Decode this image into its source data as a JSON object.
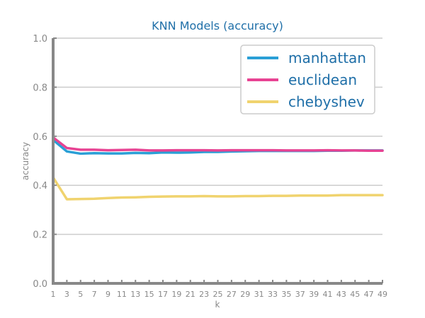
{
  "chart_data": {
    "type": "line",
    "title": "KNN Models (accuracy)",
    "xlabel": "k",
    "ylabel": "accuracy",
    "ylim": [
      0.0,
      1.0
    ],
    "xlim": [
      1,
      49
    ],
    "yticks": [
      "0.0",
      "0.2",
      "0.4",
      "0.6",
      "0.8",
      "1.0"
    ],
    "y_tick_values": [
      0.0,
      0.2,
      0.4,
      0.6,
      0.8,
      1.0
    ],
    "x": [
      1,
      3,
      5,
      7,
      9,
      11,
      13,
      15,
      17,
      19,
      21,
      23,
      25,
      27,
      29,
      31,
      33,
      35,
      37,
      39,
      41,
      43,
      45,
      47,
      49
    ],
    "xticks": [
      "1",
      "3",
      "5",
      "7",
      "9",
      "11",
      "13",
      "15",
      "17",
      "19",
      "21",
      "23",
      "25",
      "27",
      "29",
      "31",
      "33",
      "35",
      "37",
      "39",
      "41",
      "43",
      "45",
      "47",
      "49"
    ],
    "grid": "horizontal",
    "legend_position": "top-right",
    "series": [
      {
        "name": "manhattan",
        "color": "#2a9fd6",
        "values": [
          0.585,
          0.538,
          0.529,
          0.531,
          0.53,
          0.53,
          0.532,
          0.531,
          0.534,
          0.533,
          0.534,
          0.536,
          0.536,
          0.538,
          0.539,
          0.54,
          0.54,
          0.54,
          0.54,
          0.54,
          0.541,
          0.541,
          0.542,
          0.542,
          0.542
        ]
      },
      {
        "name": "euclidean",
        "color": "#e84393",
        "values": [
          0.595,
          0.552,
          0.545,
          0.545,
          0.543,
          0.544,
          0.545,
          0.542,
          0.542,
          0.543,
          0.543,
          0.543,
          0.542,
          0.543,
          0.543,
          0.543,
          0.543,
          0.542,
          0.542,
          0.542,
          0.543,
          0.542,
          0.542,
          0.541,
          0.541
        ]
      },
      {
        "name": "chebyshev",
        "color": "#f0d36e",
        "values": [
          0.432,
          0.343,
          0.344,
          0.345,
          0.348,
          0.35,
          0.351,
          0.353,
          0.354,
          0.355,
          0.355,
          0.356,
          0.355,
          0.355,
          0.356,
          0.356,
          0.357,
          0.357,
          0.358,
          0.358,
          0.358,
          0.36,
          0.36,
          0.36,
          0.36
        ]
      }
    ]
  },
  "colors": {
    "title": "#1f6fa8",
    "legend_text": "#1f6fa8",
    "tick_text": "#888888",
    "axis": "#888888",
    "grid": "#cccccc",
    "legend_border": "#cccccc"
  }
}
